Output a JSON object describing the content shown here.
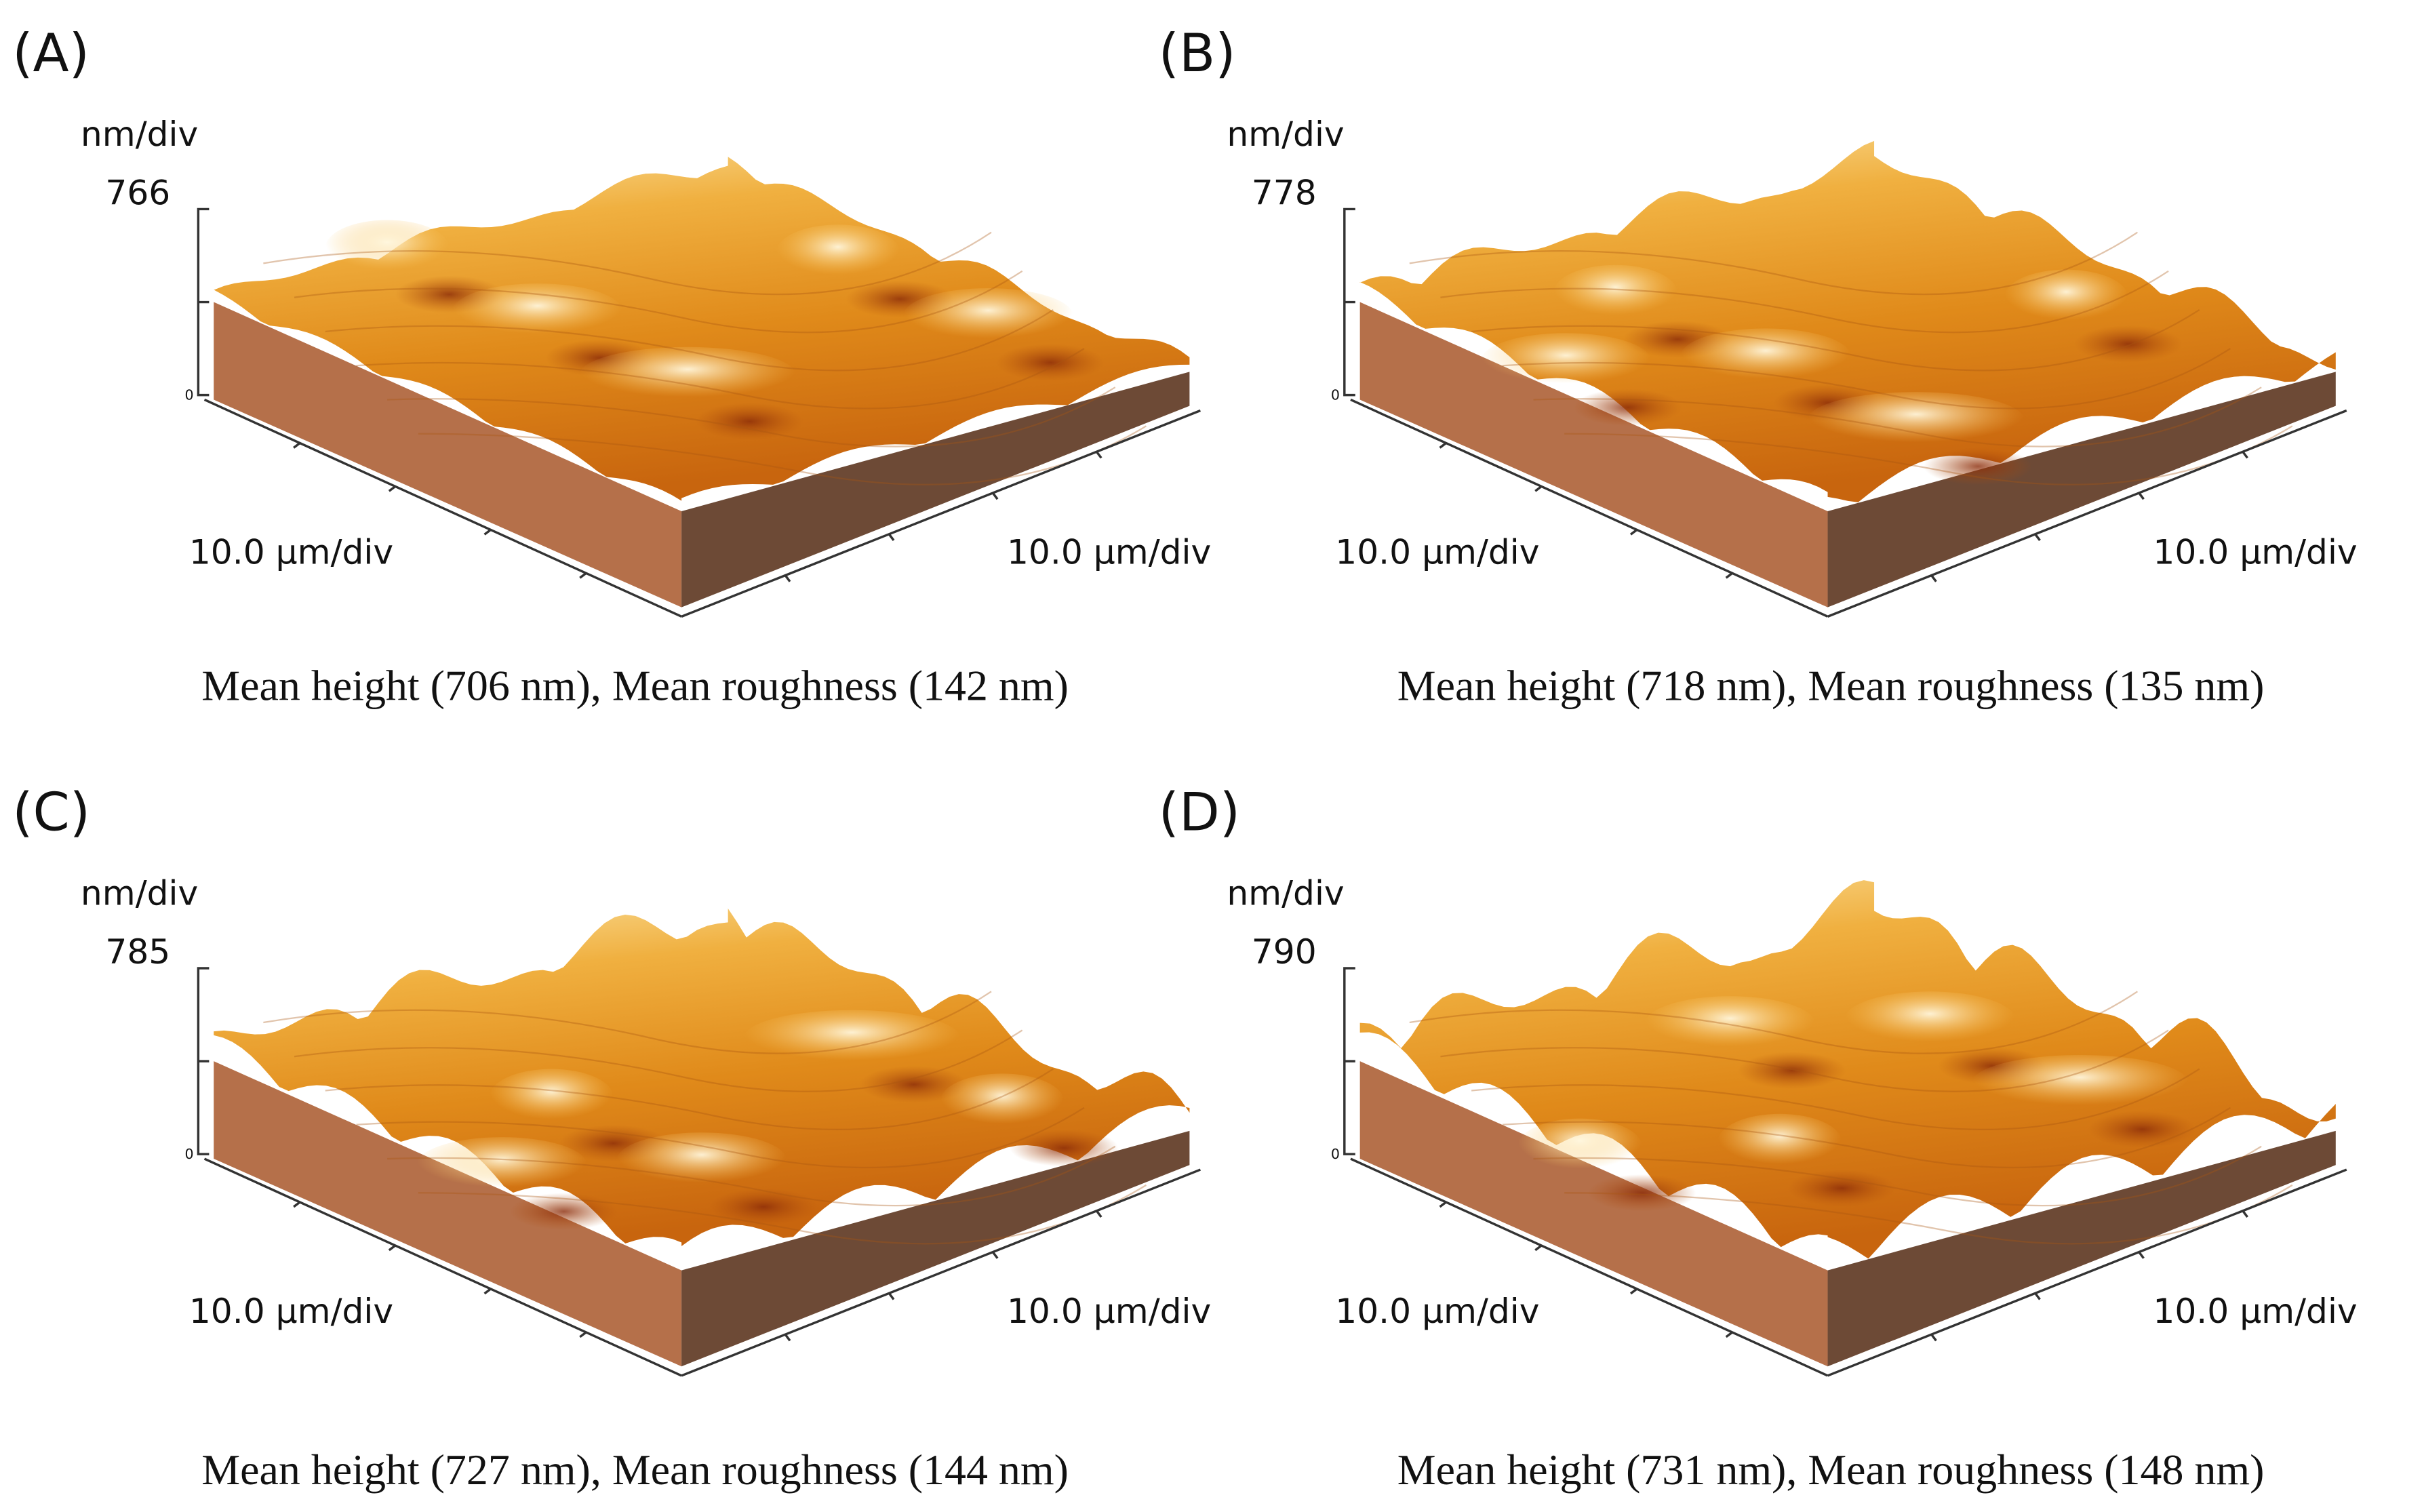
{
  "panels": [
    {
      "label": "(A)",
      "z_unit": "nm/div",
      "z_max": 766,
      "z_min": 0,
      "x_axis_left": "10.0 μm/div",
      "x_axis_right": "10.0 μm/div",
      "caption": "Mean height (706 nm), Mean roughness (142 nm)"
    },
    {
      "label": "(B)",
      "z_unit": "nm/div",
      "z_max": 778,
      "z_min": 0,
      "x_axis_left": "10.0 μm/div",
      "x_axis_right": "10.0 μm/div",
      "caption": "Mean height (718 nm), Mean roughness (135 nm)"
    },
    {
      "label": "(C)",
      "z_unit": "nm/div",
      "z_max": 785,
      "z_min": 0,
      "x_axis_left": "10.0 μm/div",
      "x_axis_right": "10.0 μm/div",
      "caption": "Mean height (727 nm), Mean roughness (144 nm)"
    },
    {
      "label": "(D)",
      "z_unit": "nm/div",
      "z_max": 790,
      "z_min": 0,
      "x_axis_left": "10.0 μm/div",
      "x_axis_right": "10.0 μm/div",
      "caption": "Mean height (731 nm), Mean roughness (148 nm)"
    }
  ]
}
